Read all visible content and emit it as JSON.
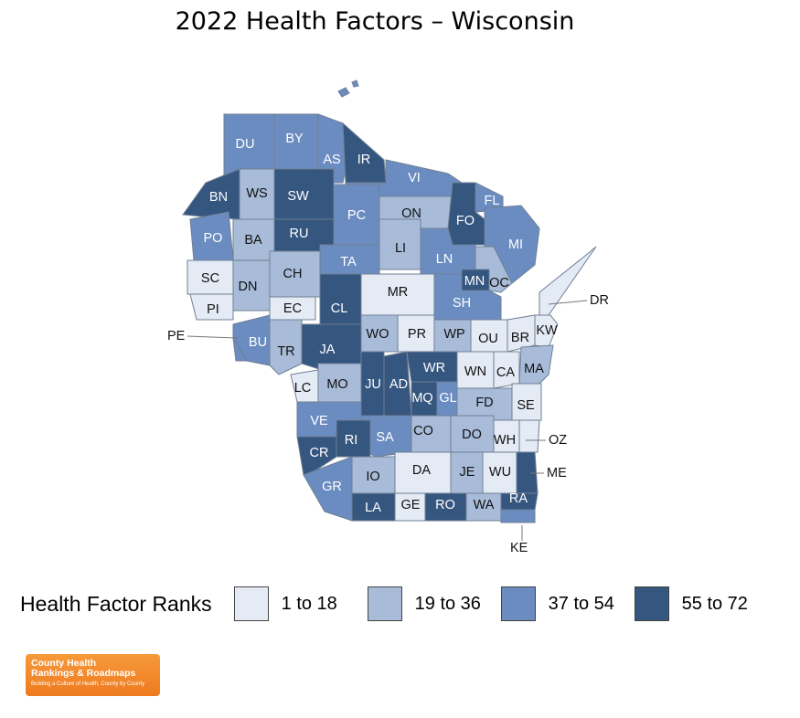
{
  "title": "2022 Health Factors – Wisconsin",
  "legend": {
    "title": "Health Factor Ranks",
    "items": [
      {
        "label": "1 to 18",
        "color": "#e4ebf5"
      },
      {
        "label": "19 to 36",
        "color": "#a8bcd9"
      },
      {
        "label": "37 to 54",
        "color": "#6b8cc0"
      },
      {
        "label": "55 to 72",
        "color": "#35567f"
      }
    ]
  },
  "logo": {
    "line1": "County Health",
    "line2": "Rankings & Roadmaps",
    "line3": "Building a Culture of Health, County by County"
  },
  "counties": [
    {
      "abbr": "DU",
      "rank_group": 3
    },
    {
      "abbr": "BY",
      "rank_group": 3
    },
    {
      "abbr": "AS",
      "rank_group": 3
    },
    {
      "abbr": "IR",
      "rank_group": 4
    },
    {
      "abbr": "VI",
      "rank_group": 3
    },
    {
      "abbr": "FL",
      "rank_group": 3
    },
    {
      "abbr": "BN",
      "rank_group": 4
    },
    {
      "abbr": "WS",
      "rank_group": 2
    },
    {
      "abbr": "SW",
      "rank_group": 4
    },
    {
      "abbr": "PC",
      "rank_group": 3
    },
    {
      "abbr": "ON",
      "rank_group": 2
    },
    {
      "abbr": "FO",
      "rank_group": 4
    },
    {
      "abbr": "MI",
      "rank_group": 3
    },
    {
      "abbr": "PO",
      "rank_group": 3
    },
    {
      "abbr": "BA",
      "rank_group": 2
    },
    {
      "abbr": "RU",
      "rank_group": 4
    },
    {
      "abbr": "LI",
      "rank_group": 2
    },
    {
      "abbr": "LN",
      "rank_group": 3
    },
    {
      "abbr": "TA",
      "rank_group": 3
    },
    {
      "abbr": "SC",
      "rank_group": 1
    },
    {
      "abbr": "DN",
      "rank_group": 2
    },
    {
      "abbr": "CH",
      "rank_group": 2
    },
    {
      "abbr": "MR",
      "rank_group": 1
    },
    {
      "abbr": "MN",
      "rank_group": 4
    },
    {
      "abbr": "OC",
      "rank_group": 2
    },
    {
      "abbr": "PI",
      "rank_group": 1
    },
    {
      "abbr": "EC",
      "rank_group": 1
    },
    {
      "abbr": "CL",
      "rank_group": 4
    },
    {
      "abbr": "SH",
      "rank_group": 3
    },
    {
      "abbr": "DR",
      "rank_group": 1
    },
    {
      "abbr": "KW",
      "rank_group": 1
    },
    {
      "abbr": "BU",
      "rank_group": 3
    },
    {
      "abbr": "TR",
      "rank_group": 2
    },
    {
      "abbr": "JA",
      "rank_group": 4
    },
    {
      "abbr": "WO",
      "rank_group": 2
    },
    {
      "abbr": "PR",
      "rank_group": 1
    },
    {
      "abbr": "WP",
      "rank_group": 2
    },
    {
      "abbr": "OU",
      "rank_group": 1
    },
    {
      "abbr": "BR",
      "rank_group": 1
    },
    {
      "abbr": "PE",
      "rank_group": 3
    },
    {
      "abbr": "MA",
      "rank_group": 2
    },
    {
      "abbr": "LC",
      "rank_group": 1
    },
    {
      "abbr": "MO",
      "rank_group": 2
    },
    {
      "abbr": "JU",
      "rank_group": 4
    },
    {
      "abbr": "AD",
      "rank_group": 4
    },
    {
      "abbr": "WR",
      "rank_group": 4
    },
    {
      "abbr": "WN",
      "rank_group": 1
    },
    {
      "abbr": "CA",
      "rank_group": 1
    },
    {
      "abbr": "MQ",
      "rank_group": 4
    },
    {
      "abbr": "GL",
      "rank_group": 3
    },
    {
      "abbr": "FD",
      "rank_group": 2
    },
    {
      "abbr": "SE",
      "rank_group": 1
    },
    {
      "abbr": "VE",
      "rank_group": 3
    },
    {
      "abbr": "SA",
      "rank_group": 3
    },
    {
      "abbr": "CO",
      "rank_group": 2
    },
    {
      "abbr": "DO",
      "rank_group": 2
    },
    {
      "abbr": "RI",
      "rank_group": 4
    },
    {
      "abbr": "WH",
      "rank_group": 1
    },
    {
      "abbr": "OZ",
      "rank_group": 1
    },
    {
      "abbr": "CR",
      "rank_group": 4
    },
    {
      "abbr": "DA",
      "rank_group": 1
    },
    {
      "abbr": "IO",
      "rank_group": 2
    },
    {
      "abbr": "JE",
      "rank_group": 2
    },
    {
      "abbr": "WU",
      "rank_group": 1
    },
    {
      "abbr": "ME",
      "rank_group": 4
    },
    {
      "abbr": "GR",
      "rank_group": 3
    },
    {
      "abbr": "LA",
      "rank_group": 4
    },
    {
      "abbr": "GE",
      "rank_group": 1
    },
    {
      "abbr": "RO",
      "rank_group": 4
    },
    {
      "abbr": "WA",
      "rank_group": 2
    },
    {
      "abbr": "RA",
      "rank_group": 4
    },
    {
      "abbr": "KE",
      "rank_group": 3
    }
  ]
}
